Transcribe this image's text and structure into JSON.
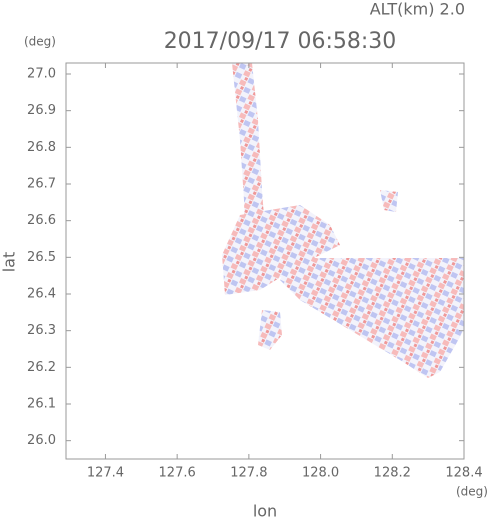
{
  "chart_data": {
    "type": "map",
    "title": "2017/09/17 06:58:30",
    "subtitle": "ALT(km)  2.0",
    "x_label": "lon",
    "y_label": "lat",
    "x_unit": "(deg)",
    "y_unit": "(deg)",
    "xlim": [
      127.29,
      128.4
    ],
    "ylim": [
      25.95,
      27.03
    ],
    "xticks": [
      127.4,
      127.6,
      127.8,
      {
        "value": 128,
        "label": "128.0"
      },
      128.2,
      128.4
    ],
    "yticks": [
      {
        "value": 26,
        "label": "26.0"
      },
      26.1,
      26.2,
      26.3,
      26.4,
      26.5,
      26.6,
      26.7,
      26.8,
      26.9,
      {
        "value": 27,
        "label": "27.0"
      }
    ]
  }
}
